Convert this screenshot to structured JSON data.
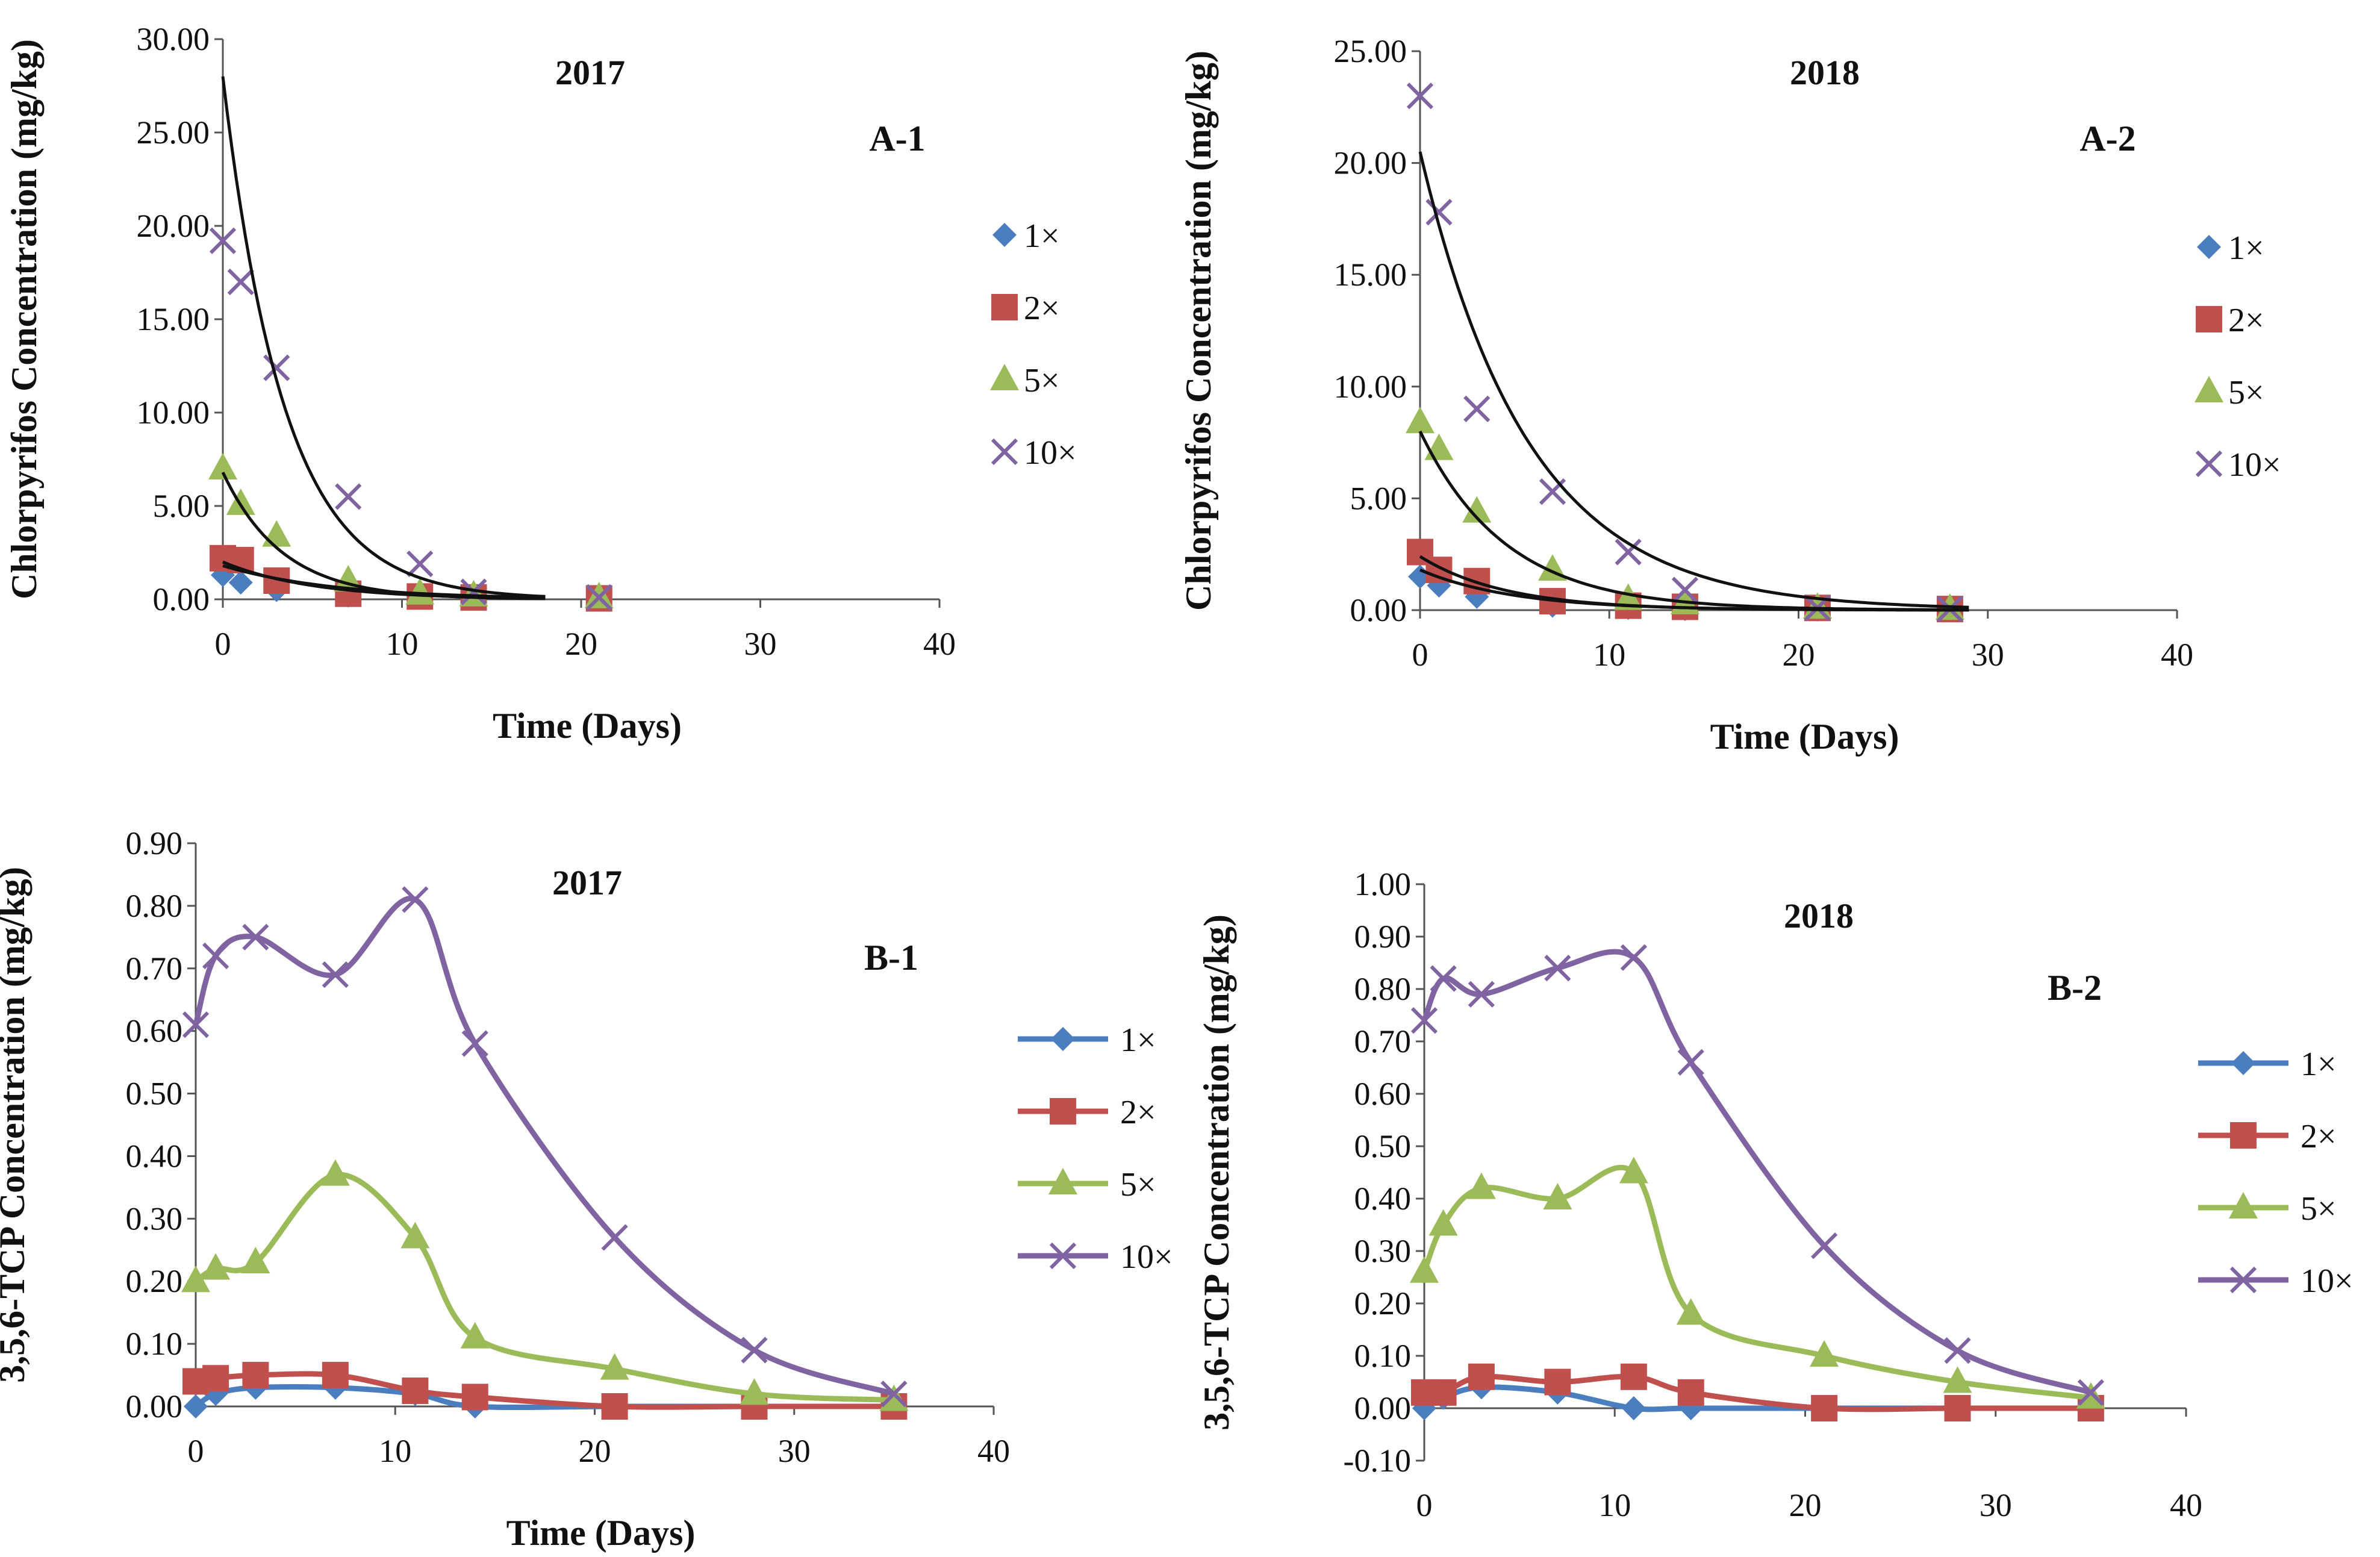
{
  "chart_data": [
    {
      "id": "A-1",
      "type": "scatter",
      "title": "2017",
      "panel_label": "A-1",
      "xlabel": "Time (Days)",
      "ylabel": "Chlorpyrifos Concentration (mg/kg)",
      "xlim": [
        0,
        40
      ],
      "ylim": [
        0,
        30
      ],
      "xticks": [
        0,
        10,
        20,
        30,
        40
      ],
      "xtick_labels": [
        "0",
        "10",
        "20",
        "30",
        "40"
      ],
      "yticks": [
        0,
        5,
        10,
        15,
        20,
        25,
        30
      ],
      "ytick_labels": [
        "0.00",
        "5.00",
        "10.00",
        "15.00",
        "20.00",
        "25.00",
        "30.00"
      ],
      "grid": false,
      "legend_position": "right",
      "lines_connected": false,
      "series": [
        {
          "name": "1×",
          "legend": "1×",
          "color": "#4a7ebf",
          "marker": "diamond",
          "x": [
            0,
            1,
            3,
            7,
            11,
            14,
            21
          ],
          "y": [
            1.3,
            0.9,
            0.5,
            0.2,
            0.1,
            0.05,
            0.02
          ],
          "fit": {
            "a": 1.8,
            "k": 0.16,
            "xmax": 18
          }
        },
        {
          "name": "2×",
          "legend": "2×",
          "color": "#c0504d",
          "marker": "square",
          "x": [
            0,
            1,
            3,
            7,
            11,
            14,
            21
          ],
          "y": [
            2.2,
            2.1,
            1.0,
            0.3,
            0.15,
            0.1,
            0.05
          ],
          "fit": {
            "a": 2.0,
            "k": 0.2,
            "xmax": 18
          }
        },
        {
          "name": "5×",
          "legend": "5×",
          "color": "#9bbb59",
          "marker": "triangle",
          "x": [
            0,
            1,
            3,
            7,
            11,
            14,
            21
          ],
          "y": [
            7.0,
            5.1,
            3.4,
            1.0,
            0.3,
            0.2,
            0.1
          ],
          "fit": {
            "a": 6.8,
            "k": 0.3,
            "xmax": 18
          }
        },
        {
          "name": "10×",
          "legend": "10×",
          "color": "#8064a2",
          "marker": "x",
          "x": [
            0,
            1,
            3,
            7,
            11,
            14,
            21
          ],
          "y": [
            19.2,
            17.0,
            12.4,
            5.5,
            1.9,
            0.4,
            0.1
          ],
          "fit": {
            "a": 28.0,
            "k": 0.29,
            "xmax": 18
          }
        }
      ]
    },
    {
      "id": "A-2",
      "type": "scatter",
      "title": "2018",
      "panel_label": "A-2",
      "xlabel": "Time (Days)",
      "ylabel": "Chlorpyrifos Concentration (mg/kg)",
      "xlim": [
        0,
        40
      ],
      "ylim": [
        0,
        25
      ],
      "xticks": [
        0,
        10,
        20,
        30,
        40
      ],
      "xtick_labels": [
        "0",
        "10",
        "20",
        "30",
        "40"
      ],
      "yticks": [
        0,
        5,
        10,
        15,
        20,
        25
      ],
      "ytick_labels": [
        "0.00",
        "5.00",
        "10.00",
        "15.00",
        "20.00",
        "25.00"
      ],
      "grid": false,
      "legend_position": "right",
      "lines_connected": false,
      "series": [
        {
          "name": "1×",
          "legend": "1×",
          "color": "#4a7ebf",
          "marker": "diamond",
          "x": [
            0,
            1,
            3,
            7,
            11,
            14,
            21,
            28
          ],
          "y": [
            1.5,
            1.1,
            0.6,
            0.2,
            0.1,
            0.05,
            0.03,
            0.02
          ],
          "fit": {
            "a": 1.8,
            "k": 0.2,
            "xmax": 29
          }
        },
        {
          "name": "2×",
          "legend": "2×",
          "color": "#c0504d",
          "marker": "square",
          "x": [
            0,
            1,
            3,
            7,
            11,
            14,
            21,
            28
          ],
          "y": [
            2.6,
            1.8,
            1.3,
            0.4,
            0.2,
            0.15,
            0.1,
            0.05
          ],
          "fit": {
            "a": 2.4,
            "k": 0.22,
            "xmax": 29
          }
        },
        {
          "name": "5×",
          "legend": "5×",
          "color": "#9bbb59",
          "marker": "triangle",
          "x": [
            0,
            1,
            3,
            7,
            11,
            14,
            21,
            28
          ],
          "y": [
            8.4,
            7.2,
            4.4,
            1.8,
            0.5,
            0.3,
            0.1,
            0.05
          ],
          "fit": {
            "a": 8.0,
            "k": 0.22,
            "xmax": 29
          }
        },
        {
          "name": "10×",
          "legend": "10×",
          "color": "#8064a2",
          "marker": "x",
          "x": [
            0,
            1,
            3,
            7,
            11,
            14,
            21,
            28
          ],
          "y": [
            23.0,
            17.8,
            9.0,
            5.3,
            2.6,
            0.9,
            0.1,
            0.05
          ],
          "fit": {
            "a": 20.5,
            "k": 0.175,
            "xmax": 29
          }
        }
      ]
    },
    {
      "id": "B-1",
      "type": "line",
      "title": "2017",
      "panel_label": "B-1",
      "xlabel": "Time (Days)",
      "ylabel": "3,5,6-TCP Concentration (mg/kg)",
      "xlim": [
        0,
        40
      ],
      "ylim": [
        0,
        0.9
      ],
      "xticks": [
        0,
        10,
        20,
        30,
        40
      ],
      "xtick_labels": [
        "0",
        "10",
        "20",
        "30",
        "40"
      ],
      "yticks": [
        0,
        0.1,
        0.2,
        0.3,
        0.4,
        0.5,
        0.6,
        0.7,
        0.8,
        0.9
      ],
      "ytick_labels": [
        "0.00",
        "0.10",
        "0.20",
        "0.30",
        "0.40",
        "0.50",
        "0.60",
        "0.70",
        "0.80",
        "0.90"
      ],
      "grid": false,
      "legend_position": "right",
      "lines_connected": true,
      "series": [
        {
          "name": "1×",
          "legend": "1×",
          "color": "#4a7ebf",
          "marker": "diamond",
          "x": [
            0,
            1,
            3,
            7,
            11,
            14,
            21,
            28,
            35
          ],
          "y": [
            0.0,
            0.02,
            0.03,
            0.03,
            0.02,
            0.0,
            0.0,
            0.0,
            0.0
          ]
        },
        {
          "name": "2×",
          "legend": "2×",
          "color": "#c0504d",
          "marker": "square",
          "x": [
            0,
            1,
            3,
            7,
            11,
            14,
            21,
            28,
            35
          ],
          "y": [
            0.04,
            0.045,
            0.05,
            0.05,
            0.025,
            0.015,
            0.0,
            0.0,
            0.0
          ]
        },
        {
          "name": "5×",
          "legend": "5×",
          "color": "#9bbb59",
          "marker": "triangle",
          "x": [
            0,
            1,
            3,
            7,
            11,
            14,
            21,
            28,
            35
          ],
          "y": [
            0.2,
            0.22,
            0.23,
            0.37,
            0.27,
            0.11,
            0.06,
            0.02,
            0.01
          ]
        },
        {
          "name": "10×",
          "legend": "10×",
          "color": "#8064a2",
          "marker": "x",
          "x": [
            0,
            1,
            3,
            7,
            11,
            14,
            21,
            28,
            35
          ],
          "y": [
            0.61,
            0.72,
            0.75,
            0.69,
            0.81,
            0.58,
            0.27,
            0.09,
            0.02
          ]
        }
      ]
    },
    {
      "id": "B-2",
      "type": "line",
      "title": "2018",
      "panel_label": "B-2",
      "xlabel": "Time (Days)",
      "ylabel": "3,5,6-TCP Concentration (mg/kg)",
      "xlim": [
        0,
        40
      ],
      "ylim": [
        -0.1,
        1.0
      ],
      "xticks": [
        0,
        10,
        20,
        30,
        40
      ],
      "xtick_labels": [
        "0",
        "10",
        "20",
        "30",
        "40"
      ],
      "yticks": [
        -0.1,
        0,
        0.1,
        0.2,
        0.3,
        0.4,
        0.5,
        0.6,
        0.7,
        0.8,
        0.9,
        1.0
      ],
      "ytick_labels": [
        "-0.10",
        "0.00",
        "0.10",
        "0.20",
        "0.30",
        "0.40",
        "0.50",
        "0.60",
        "0.70",
        "0.80",
        "0.90",
        "1.00"
      ],
      "grid": false,
      "legend_position": "right",
      "lines_connected": true,
      "series": [
        {
          "name": "1×",
          "legend": "1×",
          "color": "#4a7ebf",
          "marker": "diamond",
          "x": [
            0,
            1,
            3,
            7,
            11,
            14,
            21,
            28,
            35
          ],
          "y": [
            0.0,
            0.02,
            0.04,
            0.03,
            0.0,
            0.0,
            0.0,
            0.0,
            0.0
          ]
        },
        {
          "name": "2×",
          "legend": "2×",
          "color": "#c0504d",
          "marker": "square",
          "x": [
            0,
            1,
            3,
            7,
            11,
            14,
            21,
            28,
            35
          ],
          "y": [
            0.03,
            0.03,
            0.06,
            0.05,
            0.06,
            0.03,
            0.0,
            0.0,
            0.0
          ]
        },
        {
          "name": "5×",
          "legend": "5×",
          "color": "#9bbb59",
          "marker": "triangle",
          "x": [
            0,
            1,
            3,
            7,
            11,
            14,
            21,
            28,
            35
          ],
          "y": [
            0.26,
            0.35,
            0.42,
            0.4,
            0.45,
            0.18,
            0.1,
            0.05,
            0.02
          ]
        },
        {
          "name": "10×",
          "legend": "10×",
          "color": "#8064a2",
          "marker": "x",
          "x": [
            0,
            1,
            3,
            7,
            11,
            14,
            21,
            28,
            35
          ],
          "y": [
            0.74,
            0.82,
            0.79,
            0.84,
            0.86,
            0.66,
            0.31,
            0.11,
            0.03
          ]
        }
      ]
    }
  ]
}
